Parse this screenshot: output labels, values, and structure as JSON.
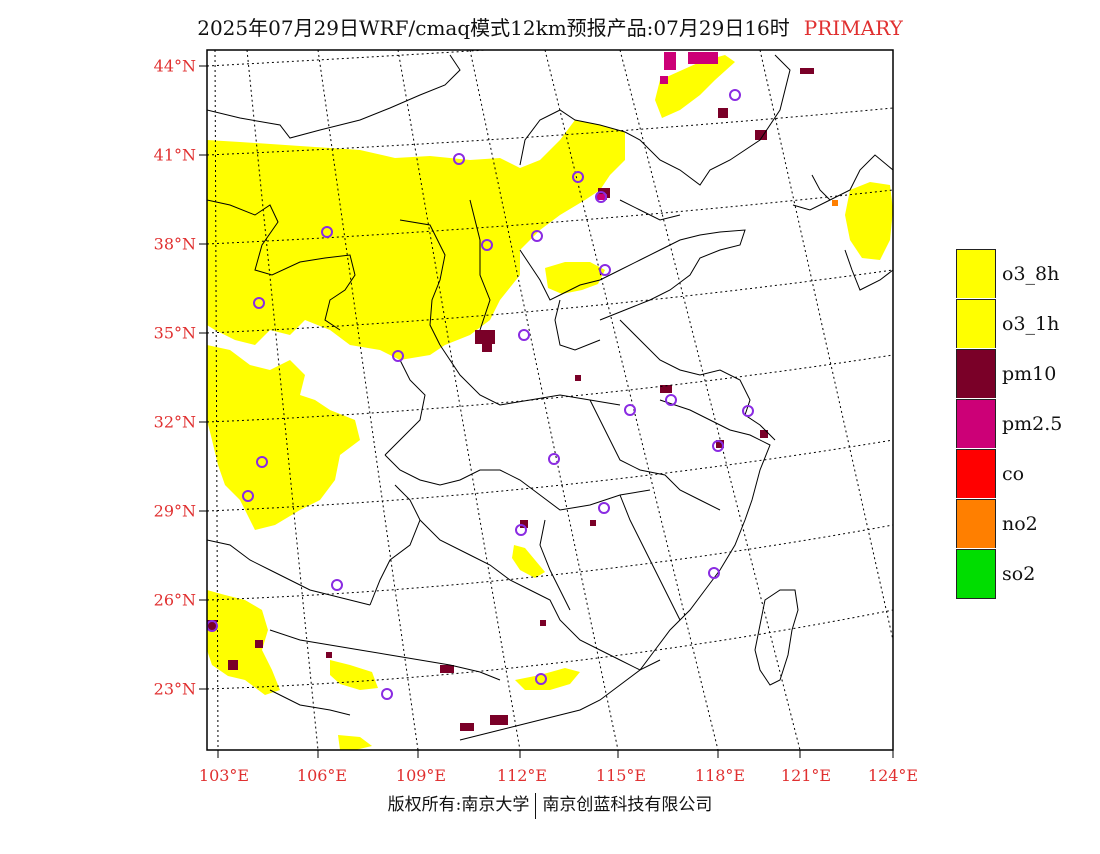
{
  "title": {
    "main": "2025年07月29日WRF/cmaq模式12km预报产品:07月29日16时",
    "tag": "PRIMARY"
  },
  "map": {
    "lat_labels": [
      "44°N",
      "41°N",
      "38°N",
      "35°N",
      "32°N",
      "29°N",
      "26°N",
      "23°N"
    ],
    "lon_labels": [
      "103°E",
      "106°E",
      "109°E",
      "112°E",
      "115°E",
      "118°E",
      "121°E",
      "124°E"
    ],
    "colors": {
      "o3_8h": "#ffff00",
      "o3_1h": "#ffff00",
      "pm10": "#7a0028",
      "pm25": "#cc0077",
      "co": "#ff0000",
      "no2": "#ff7f00",
      "so2": "#00dd00",
      "station": "#8a2be2",
      "grid": "#000000",
      "label": "#e03030"
    }
  },
  "legend": {
    "items": [
      {
        "label": "o3_8h",
        "color": "#ffff00"
      },
      {
        "label": "o3_1h",
        "color": "#ffff00"
      },
      {
        "label": "pm10",
        "color": "#7a0028"
      },
      {
        "label": "pm2.5",
        "color": "#cc0077"
      },
      {
        "label": "co",
        "color": "#ff0000"
      },
      {
        "label": "no2",
        "color": "#ff7f00"
      },
      {
        "label": "so2",
        "color": "#00dd00"
      }
    ]
  },
  "copyright": {
    "left": "版权所有:南京大学",
    "right": "南京创蓝科技有限公司"
  }
}
